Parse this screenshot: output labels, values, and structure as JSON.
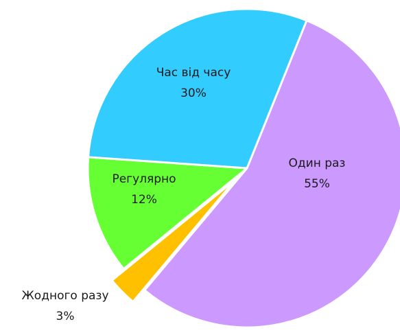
{
  "chart_data": {
    "type": "pie",
    "title": "",
    "slices": [
      {
        "label": "Один раз",
        "value": 55,
        "value_label": "55%",
        "color": "#cc99ff"
      },
      {
        "label": "Жодного разу",
        "value": 3,
        "value_label": "3%",
        "color": "#ffc000",
        "exploded": true,
        "label_outside": true
      },
      {
        "label": "Регулярно",
        "value": 12,
        "value_label": "12%",
        "color": "#66ff33"
      },
      {
        "label": "Час від часу",
        "value": 30,
        "value_label": "30%",
        "color": "#33ccff"
      }
    ],
    "legend": "none",
    "data_labels": "inside"
  }
}
